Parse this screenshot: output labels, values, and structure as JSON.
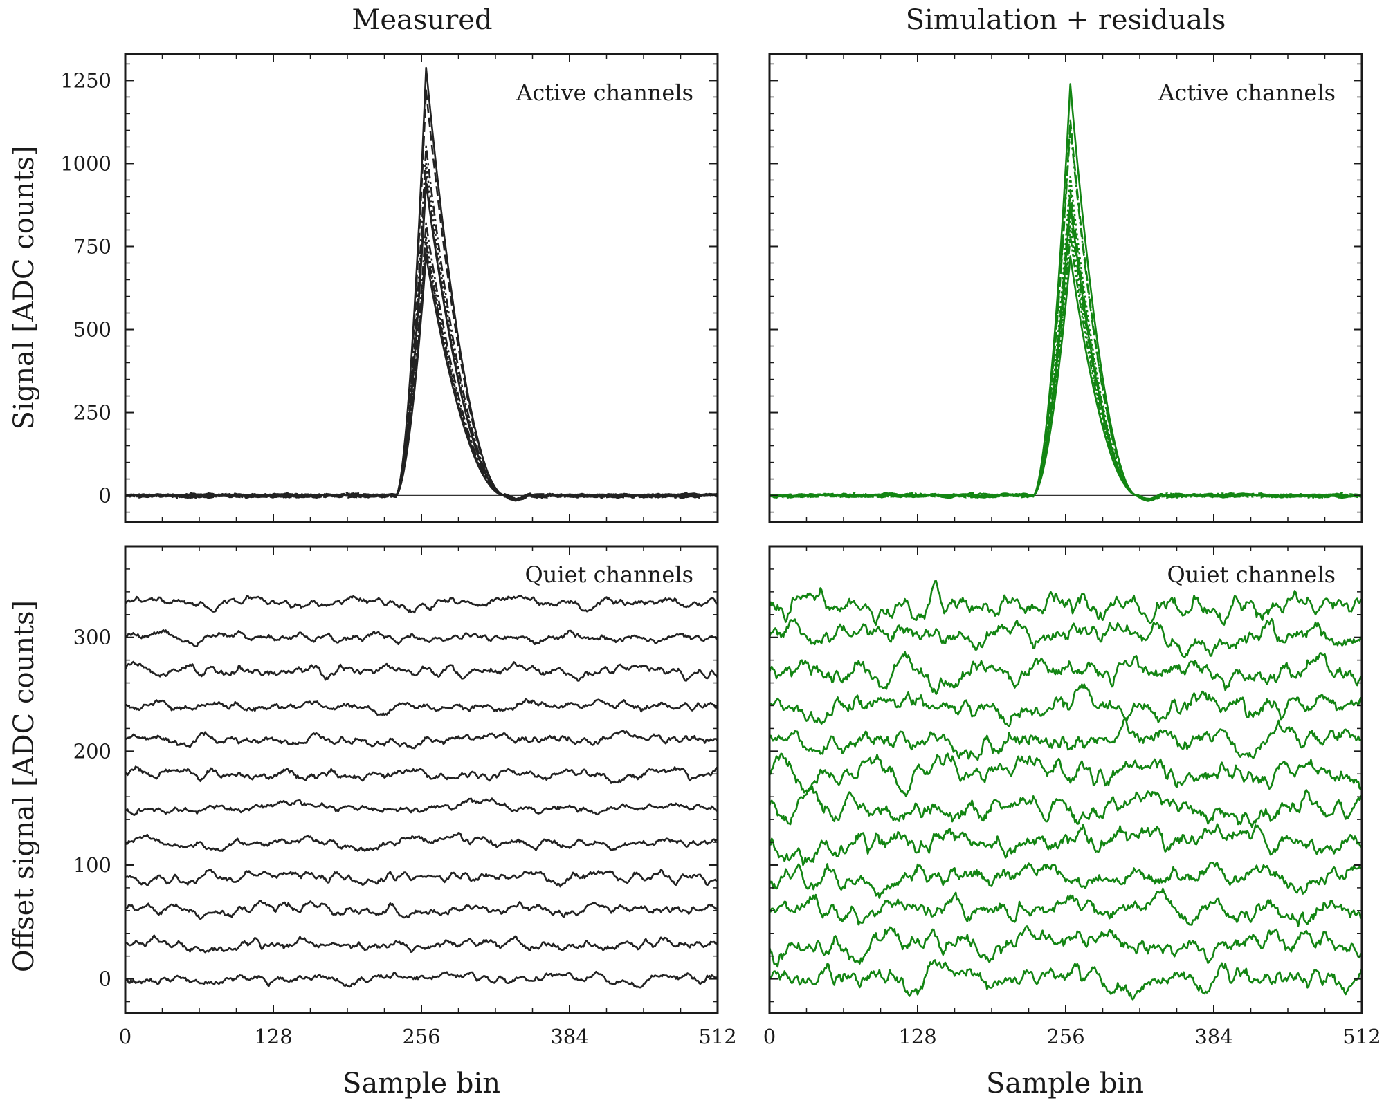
{
  "chart_data": [
    {
      "panel": "top-left",
      "type": "line",
      "title": "Measured",
      "annotation": "Active channels",
      "xlabel": "",
      "ylabel": "Signal [ADC counts]",
      "xlim": [
        0,
        512
      ],
      "ylim": [
        -80,
        1330
      ],
      "xticks": [
        0,
        128,
        256,
        384,
        512
      ],
      "yticks": [
        0,
        250,
        500,
        750,
        1000,
        1250
      ],
      "color": "#222222",
      "pulse_peak_bin": 260,
      "pulse_start_bin": 234,
      "pulse_end_bin": 328,
      "series": [
        {
          "peak": 1290,
          "dash": "solid"
        },
        {
          "peak": 1220,
          "dash": "dashed"
        },
        {
          "peak": 1050,
          "dash": "dashdot"
        },
        {
          "peak": 1000,
          "dash": "dotted"
        },
        {
          "peak": 960,
          "dash": "dashed"
        },
        {
          "peak": 940,
          "dash": "solid"
        },
        {
          "peak": 820,
          "dash": "dashdot"
        },
        {
          "peak": 780,
          "dash": "dotted"
        },
        {
          "peak": 760,
          "dash": "dashdotdot"
        },
        {
          "peak": 740,
          "dash": "dashed"
        },
        {
          "peak": 720,
          "dash": "solid"
        }
      ]
    },
    {
      "panel": "top-right",
      "type": "line",
      "title": "Simulation + residuals",
      "annotation": "Active channels",
      "xlabel": "",
      "ylabel": "",
      "xlim": [
        0,
        512
      ],
      "ylim": [
        -80,
        1330
      ],
      "xticks": [
        0,
        128,
        256,
        384,
        512
      ],
      "yticks": [
        0,
        250,
        500,
        750,
        1000,
        1250
      ],
      "color": "#138513",
      "pulse_peak_bin": 260,
      "pulse_start_bin": 228,
      "pulse_end_bin": 318,
      "series": [
        {
          "peak": 1240,
          "dash": "solid"
        },
        {
          "peak": 1130,
          "dash": "dashed"
        },
        {
          "peak": 1110,
          "dash": "dashdot"
        },
        {
          "peak": 960,
          "dash": "dotted"
        },
        {
          "peak": 920,
          "dash": "dashed"
        },
        {
          "peak": 880,
          "dash": "solid"
        },
        {
          "peak": 850,
          "dash": "dashdot"
        },
        {
          "peak": 810,
          "dash": "dotted"
        },
        {
          "peak": 780,
          "dash": "dashdotdot"
        },
        {
          "peak": 720,
          "dash": "solid"
        }
      ]
    },
    {
      "panel": "bottom-left",
      "type": "line",
      "annotation": "Quiet channels",
      "xlabel": "Sample bin",
      "ylabel": "Offset signal [ADC counts]",
      "xlim": [
        0,
        512
      ],
      "ylim": [
        -30,
        380
      ],
      "xticks": [
        0,
        128,
        256,
        384,
        512
      ],
      "yticks": [
        0,
        100,
        200,
        300
      ],
      "color": "#222222",
      "trace_offsets": [
        0,
        30,
        60,
        90,
        120,
        150,
        180,
        210,
        240,
        270,
        300,
        330
      ],
      "noise_amplitude": 8,
      "seed": 11
    },
    {
      "panel": "bottom-right",
      "type": "line",
      "annotation": "Quiet channels",
      "xlabel": "Sample bin",
      "ylabel": "",
      "xlim": [
        0,
        512
      ],
      "ylim": [
        -30,
        380
      ],
      "xticks": [
        0,
        128,
        256,
        384,
        512
      ],
      "yticks": [
        0,
        100,
        200,
        300
      ],
      "color": "#138513",
      "trace_offsets": [
        0,
        30,
        60,
        90,
        120,
        150,
        180,
        210,
        240,
        270,
        300,
        330
      ],
      "noise_amplitude": 18,
      "seed": 29
    }
  ]
}
